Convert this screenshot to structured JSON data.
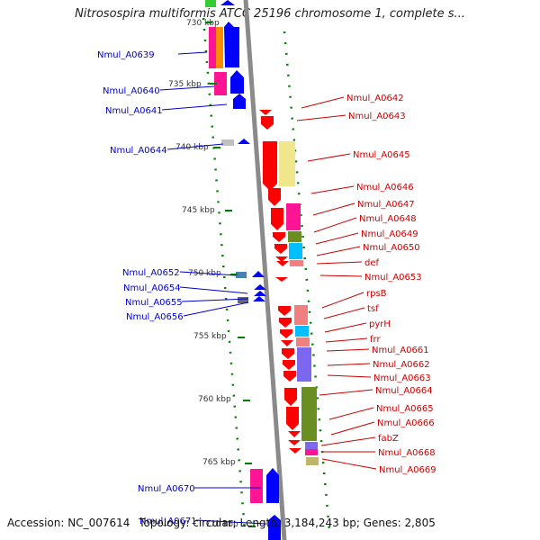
{
  "title": "Nitrosospira multiformis ATCC 25196 chromosome 1, complete s...",
  "footer": {
    "accession": "Accession: NC_007614",
    "topology": "Topology: circular; Length: 3,184,243 bp; Genes: 2,805"
  },
  "colors": {
    "backbone": "#808080",
    "tick": "#008000",
    "left_label": "#0000cc",
    "right_label": "#cc0000"
  },
  "scale_labels": [
    "730 kbp",
    "735 kbp",
    "740 kbp",
    "745 kbp",
    "750 kbp",
    "755 kbp",
    "760 kbp",
    "765 kbp",
    "770 kbp"
  ],
  "left_labels": [
    "Nmul_A0639",
    "Nmul_A0640",
    "Nmul_A0641",
    "Nmul_A0644",
    "Nmul_A0652",
    "Nmul_A0654",
    "Nmul_A0655",
    "Nmul_A0656",
    "Nmul_A0670",
    "Nmul_A0671"
  ],
  "right_labels": [
    "Nmul_A0642",
    "Nmul_A0643",
    "Nmul_A0645",
    "Nmul_A0646",
    "Nmul_A0647",
    "Nmul_A0648",
    "Nmul_A0649",
    "Nmul_A0650",
    "def",
    "Nmul_A0653",
    "rpsB",
    "tsf",
    "pyrH",
    "frr",
    "Nmul_A0661",
    "Nmul_A0662",
    "Nmul_A0663",
    "Nmul_A0664",
    "Nmul_A0665",
    "Nmul_A0666",
    "fabZ",
    "Nmul_A0668",
    "Nmul_A0669"
  ]
}
